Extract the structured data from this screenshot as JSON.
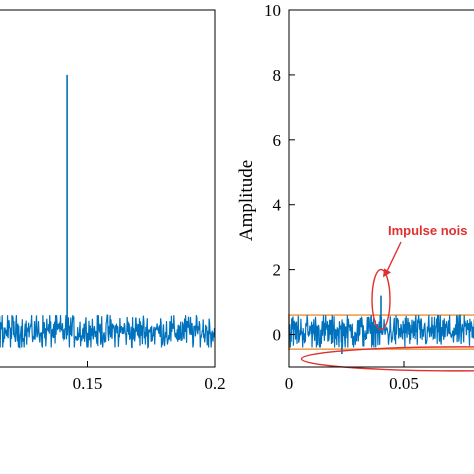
{
  "chart_data": [
    {
      "type": "line",
      "xlim": [
        0.1,
        0.2
      ],
      "ylim": [
        -1,
        10
      ],
      "x_ticks": [
        {
          "value": 0.15,
          "label": "0.15"
        },
        {
          "value": 0.2,
          "label": "0.2"
        }
      ],
      "y_ticks": [],
      "xlabel": "",
      "ylabel": "",
      "grid": false,
      "series": [
        {
          "color": "#0072BD",
          "noise_range": [
            -0.4,
            0.6
          ],
          "x_start": 0.1,
          "x_end": 0.2,
          "impulses": [
            {
              "x": 0.142,
              "y": 8
            }
          ]
        }
      ]
    },
    {
      "type": "line",
      "xlim": [
        0,
        0.1
      ],
      "ylim": [
        -1,
        10
      ],
      "x_ticks": [
        {
          "value": 0,
          "label": "0"
        },
        {
          "value": 0.05,
          "label": "0.05"
        }
      ],
      "y_ticks": [
        {
          "value": 0,
          "label": "0"
        },
        {
          "value": 2,
          "label": "2"
        },
        {
          "value": 4,
          "label": "4"
        },
        {
          "value": 6,
          "label": "6"
        },
        {
          "value": 8,
          "label": "8"
        },
        {
          "value": 10,
          "label": "10"
        }
      ],
      "xlabel": "",
      "ylabel": "Amplitude",
      "grid": false,
      "series": [
        {
          "color": "#0072BD",
          "noise_range": [
            -0.4,
            0.6
          ],
          "x_start": 0,
          "x_end": 0.1,
          "impulses": [
            {
              "x": 0.04,
              "y": 1.2
            },
            {
              "x": 0.023,
              "y": -0.6
            }
          ]
        }
      ],
      "annotations": [
        {
          "text": "Impulse nois",
          "color": "#e03030",
          "target_x": 0.04,
          "target_y": 1.7
        }
      ],
      "highlight_band": {
        "y_min": -0.45,
        "y_max": 0.6,
        "color": "#f0a050"
      },
      "highlight_ellipse": {
        "x_center": 0.075,
        "y_center": -0.75,
        "color": "#e03030"
      },
      "highlight_circle": {
        "x_center": 0.04,
        "y_center": 1.2,
        "color": "#e03030"
      }
    }
  ]
}
